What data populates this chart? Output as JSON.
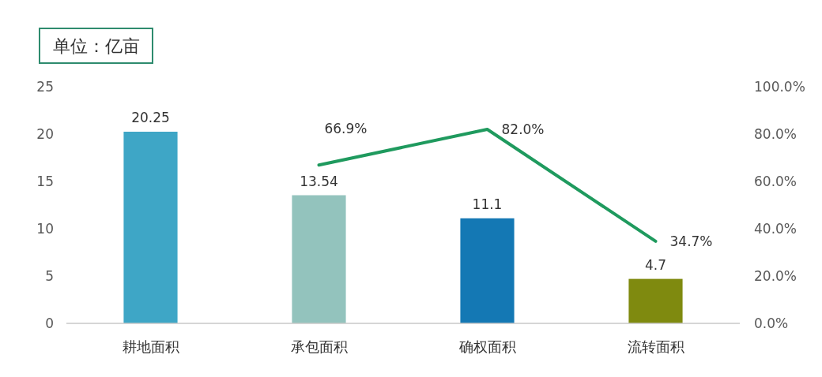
{
  "chart_data": {
    "type": "bar",
    "annotations": [
      "单位：亿亩"
    ],
    "categories": [
      "耕地面积",
      "承包面积",
      "确权面积",
      "流转面积"
    ],
    "series": [
      {
        "colors": [
          "#3ea6c6",
          "#93c3bd",
          "#1478b4",
          "#7f8a0f"
        ],
        "values": [
          20.25,
          13.54,
          11.1,
          4.7
        ],
        "value_labels": [
          "20.25",
          "13.54",
          "11.1",
          "4.7"
        ]
      },
      {
        "type": "line",
        "axis": "y2",
        "color": "#1f9a5e",
        "values": [
          null,
          66.9,
          82.0,
          34.7
        ],
        "value_labels": [
          null,
          "66.9%",
          "82.0%",
          "34.7%"
        ]
      }
    ],
    "ylim": [
      0,
      25
    ],
    "yticks": [
      0,
      5,
      10,
      15,
      20,
      25
    ],
    "y2lim": [
      0,
      100
    ],
    "y2ticks": [
      {
        "value": 0,
        "label": "0.0%"
      },
      {
        "value": 20,
        "label": "20.0%"
      },
      {
        "value": 40,
        "label": "40.0%"
      },
      {
        "value": 60,
        "label": "60.0%"
      },
      {
        "value": 80,
        "label": "80.0%"
      },
      {
        "value": 100,
        "label": "100.0%"
      }
    ]
  }
}
